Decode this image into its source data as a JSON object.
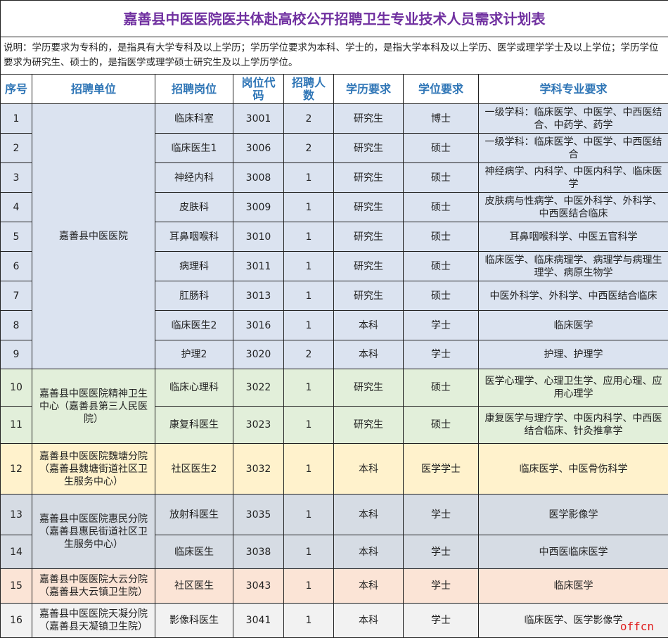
{
  "title": "嘉善县中医医院医共体赴高校公开招聘卫生专业技术人员需求计划表",
  "note": "说明：学历要求为专科的，是指具有大学专科及以上学历；学历学位要求为本科、学士的，是指大学本科及以上学历、医学或理学学士及以上学位；学历学位要求为研究生、硕士的，是指医学或理学硕士研究生及以上学历学位。",
  "headers": [
    "序号",
    "招聘单位",
    "招聘岗位",
    "岗位代码",
    "招聘人数",
    "学历要求",
    "学位要求",
    "学科专业要求"
  ],
  "colors": {
    "title": "#7030a0",
    "header": "#2e75b6",
    "blue": "#dbe3f0",
    "green": "#e2efda",
    "yellow": "#fff2cc",
    "gray": "#d6dce4",
    "peach": "#fbe4d6",
    "light": "#f2f2f2"
  },
  "groups": [
    {
      "unit": "嘉善县中医医院",
      "color": "blue",
      "rows": [
        {
          "no": "1",
          "post": "临床科室",
          "code": "3001",
          "count": "2",
          "edu": "研究生",
          "degree": "博士",
          "major": "一级学科：临床医学、中医学、中西医结合、中药学、药学"
        },
        {
          "no": "2",
          "post": "临床医生1",
          "code": "3006",
          "count": "2",
          "edu": "研究生",
          "degree": "硕士",
          "major": "一级学科：临床医学、中医学、中西医结合"
        },
        {
          "no": "3",
          "post": "神经内科",
          "code": "3008",
          "count": "1",
          "edu": "研究生",
          "degree": "硕士",
          "major": "神经病学、内科学、中医内科学、临床医学"
        },
        {
          "no": "4",
          "post": "皮肤科",
          "code": "3009",
          "count": "1",
          "edu": "研究生",
          "degree": "硕士",
          "major": "皮肤病与性病学、中医外科学、外科学、中西医结合临床"
        },
        {
          "no": "5",
          "post": "耳鼻咽喉科",
          "code": "3010",
          "count": "1",
          "edu": "研究生",
          "degree": "硕士",
          "major": "耳鼻咽喉科学、中医五官科学"
        },
        {
          "no": "6",
          "post": "病理科",
          "code": "3011",
          "count": "1",
          "edu": "研究生",
          "degree": "硕士",
          "major": "临床医学、临床病理学、病理学与病理生理学、病原生物学"
        },
        {
          "no": "7",
          "post": "肛肠科",
          "code": "3013",
          "count": "1",
          "edu": "研究生",
          "degree": "硕士",
          "major": "中医外科学、外科学、中西医结合临床"
        },
        {
          "no": "8",
          "post": "临床医生2",
          "code": "3016",
          "count": "1",
          "edu": "本科",
          "degree": "学士",
          "major": "临床医学"
        },
        {
          "no": "9",
          "post": "护理2",
          "code": "3020",
          "count": "2",
          "edu": "本科",
          "degree": "学士",
          "major": "护理、护理学"
        }
      ]
    },
    {
      "unit": "嘉善县中医医院精神卫生中心（嘉善县第三人民医院）",
      "color": "green",
      "rows": [
        {
          "no": "10",
          "post": "临床心理科",
          "code": "3022",
          "count": "1",
          "edu": "研究生",
          "degree": "硕士",
          "major": "医学心理学、心理卫生学、应用心理、应用心理学"
        },
        {
          "no": "11",
          "post": "康复科医生",
          "code": "3023",
          "count": "1",
          "edu": "研究生",
          "degree": "硕士",
          "major": "康复医学与理疗学、中医内科学、中西医结合临床、针灸推拿学"
        }
      ]
    },
    {
      "unit": "嘉善县中医医院魏塘分院（嘉善县魏塘街道社区卫生服务中心）",
      "color": "yellow",
      "rows": [
        {
          "no": "12",
          "post": "社区医生2",
          "code": "3032",
          "count": "1",
          "edu": "本科",
          "degree": "医学学士",
          "major": "临床医学、中医骨伤科学"
        }
      ]
    },
    {
      "unit": "嘉善县中医医院惠民分院（嘉善县惠民街道社区卫生服务中心）",
      "color": "gray",
      "rows": [
        {
          "no": "13",
          "post": "放射科医生",
          "code": "3035",
          "count": "1",
          "edu": "本科",
          "degree": "学士",
          "major": "医学影像学"
        },
        {
          "no": "14",
          "post": "临床医生",
          "code": "3038",
          "count": "1",
          "edu": "本科",
          "degree": "学士",
          "major": "中西医临床医学"
        }
      ]
    },
    {
      "unit": "嘉善县中医医院大云分院（嘉善县大云镇卫生院）",
      "color": "peach",
      "rows": [
        {
          "no": "15",
          "post": "社区医生",
          "code": "3043",
          "count": "1",
          "edu": "本科",
          "degree": "学士",
          "major": "临床医学"
        }
      ]
    },
    {
      "unit": "嘉善县中医医院天凝分院（嘉善县天凝镇卫生院）",
      "color": "light",
      "rows": [
        {
          "no": "16",
          "post": "影像科医生",
          "code": "3041",
          "count": "1",
          "edu": "本科",
          "degree": "学士",
          "major": "临床医学、医学影像学"
        }
      ]
    }
  ],
  "watermark": "offcn"
}
